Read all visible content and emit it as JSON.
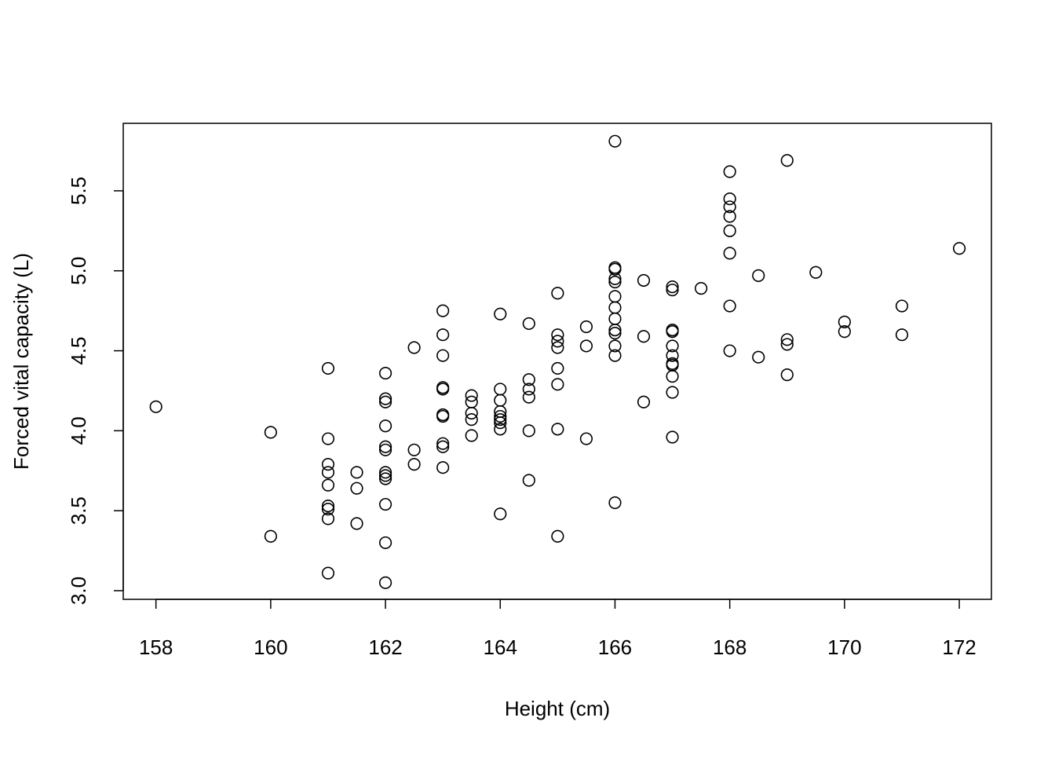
{
  "chart_data": {
    "type": "scatter",
    "title": "",
    "xlabel": "Height (cm)",
    "ylabel": "Forced vital capacity (L)",
    "xlim": [
      157.43,
      172.56
    ],
    "ylim": [
      2.946,
      5.922
    ],
    "xticks": [
      158,
      160,
      162,
      164,
      166,
      168,
      170,
      172
    ],
    "yticks": [
      3.0,
      3.5,
      4.0,
      4.5,
      5.0,
      5.5
    ],
    "ytick_labels": [
      "3.0",
      "3.5",
      "4.0",
      "4.5",
      "5.0",
      "5.5"
    ],
    "grid": false,
    "marker": "open-circle",
    "color": "#000000",
    "points": [
      [
        158,
        4.15
      ],
      [
        160,
        3.99
      ],
      [
        160,
        3.34
      ],
      [
        161,
        4.39
      ],
      [
        161,
        3.95
      ],
      [
        161,
        3.79
      ],
      [
        161,
        3.74
      ],
      [
        161,
        3.66
      ],
      [
        161,
        3.53
      ],
      [
        161,
        3.51
      ],
      [
        161,
        3.45
      ],
      [
        161,
        3.11
      ],
      [
        161.5,
        3.74
      ],
      [
        161.5,
        3.64
      ],
      [
        161.5,
        3.42
      ],
      [
        162,
        4.36
      ],
      [
        162,
        4.2
      ],
      [
        162,
        4.18
      ],
      [
        162,
        4.03
      ],
      [
        162,
        3.9
      ],
      [
        162,
        3.88
      ],
      [
        162,
        3.74
      ],
      [
        162,
        3.72
      ],
      [
        162,
        3.7
      ],
      [
        162,
        3.54
      ],
      [
        162,
        3.3
      ],
      [
        162,
        3.05
      ],
      [
        162.5,
        4.52
      ],
      [
        162.5,
        3.88
      ],
      [
        162.5,
        3.79
      ],
      [
        163,
        4.75
      ],
      [
        163,
        4.6
      ],
      [
        163,
        4.47
      ],
      [
        163,
        4.27
      ],
      [
        163,
        4.26
      ],
      [
        163,
        4.1
      ],
      [
        163,
        4.09
      ],
      [
        163,
        3.92
      ],
      [
        163,
        3.9
      ],
      [
        163,
        3.77
      ],
      [
        163.5,
        4.22
      ],
      [
        163.5,
        4.18
      ],
      [
        163.5,
        4.11
      ],
      [
        163.5,
        4.07
      ],
      [
        163.5,
        3.97
      ],
      [
        164,
        4.73
      ],
      [
        164,
        4.26
      ],
      [
        164,
        4.19
      ],
      [
        164,
        4.12
      ],
      [
        164,
        4.09
      ],
      [
        164,
        4.07
      ],
      [
        164,
        4.05
      ],
      [
        164,
        4.01
      ],
      [
        164,
        3.48
      ],
      [
        164.5,
        4.67
      ],
      [
        164.5,
        4.32
      ],
      [
        164.5,
        4.26
      ],
      [
        164.5,
        4.21
      ],
      [
        164.5,
        4.0
      ],
      [
        164.5,
        3.69
      ],
      [
        165,
        4.86
      ],
      [
        165,
        4.6
      ],
      [
        165,
        4.56
      ],
      [
        165,
        4.52
      ],
      [
        165,
        4.39
      ],
      [
        165,
        4.29
      ],
      [
        165,
        4.01
      ],
      [
        165,
        3.34
      ],
      [
        165.5,
        4.65
      ],
      [
        165.5,
        4.53
      ],
      [
        165.5,
        3.95
      ],
      [
        166,
        5.81
      ],
      [
        166,
        5.02
      ],
      [
        166,
        5.01
      ],
      [
        166,
        4.95
      ],
      [
        166,
        4.93
      ],
      [
        166,
        4.84
      ],
      [
        166,
        4.77
      ],
      [
        166,
        4.7
      ],
      [
        166,
        4.63
      ],
      [
        166,
        4.61
      ],
      [
        166,
        4.53
      ],
      [
        166,
        4.47
      ],
      [
        166,
        3.55
      ],
      [
        166.5,
        4.94
      ],
      [
        166.5,
        4.59
      ],
      [
        166.5,
        4.18
      ],
      [
        167,
        4.9
      ],
      [
        167,
        4.88
      ],
      [
        167,
        4.63
      ],
      [
        167,
        4.62
      ],
      [
        167,
        4.53
      ],
      [
        167,
        4.47
      ],
      [
        167,
        4.42
      ],
      [
        167,
        4.41
      ],
      [
        167,
        4.34
      ],
      [
        167,
        4.24
      ],
      [
        167,
        3.96
      ],
      [
        167.5,
        4.89
      ],
      [
        168,
        5.62
      ],
      [
        168,
        5.45
      ],
      [
        168,
        5.4
      ],
      [
        168,
        5.34
      ],
      [
        168,
        5.25
      ],
      [
        168,
        5.11
      ],
      [
        168,
        4.78
      ],
      [
        168,
        4.5
      ],
      [
        168.5,
        4.97
      ],
      [
        168.5,
        4.46
      ],
      [
        169,
        5.69
      ],
      [
        169,
        4.57
      ],
      [
        169,
        4.54
      ],
      [
        169,
        4.35
      ],
      [
        169.5,
        4.99
      ],
      [
        170,
        4.68
      ],
      [
        170,
        4.62
      ],
      [
        171,
        4.78
      ],
      [
        171,
        4.6
      ],
      [
        172,
        5.14
      ]
    ]
  }
}
